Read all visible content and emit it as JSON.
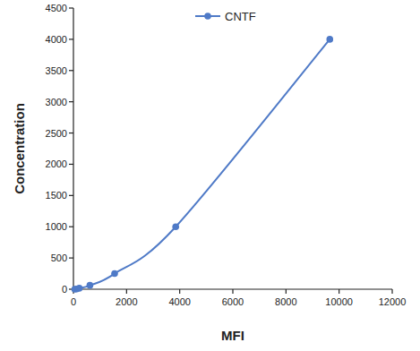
{
  "chart_data": {
    "type": "line",
    "x_label": "MFI",
    "y_label": "Concentration",
    "series": [
      {
        "name": "CNTF",
        "color": "#4f7ac7",
        "marker": "circle",
        "line_style": "solid",
        "x": [
          50,
          120,
          220,
          620,
          1550,
          3850,
          9650
        ],
        "values": [
          0,
          3.9,
          15.6,
          62.5,
          250,
          1000,
          4000
        ]
      }
    ],
    "xlim": [
      0,
      12000
    ],
    "xticks": [
      0,
      2000,
      4000,
      6000,
      8000,
      10000,
      12000
    ],
    "ylim": [
      0,
      4500
    ],
    "yticks": [
      0,
      500,
      1000,
      1500,
      2000,
      2500,
      3000,
      3500,
      4000,
      4500
    ],
    "grid": false,
    "legend": "top"
  }
}
